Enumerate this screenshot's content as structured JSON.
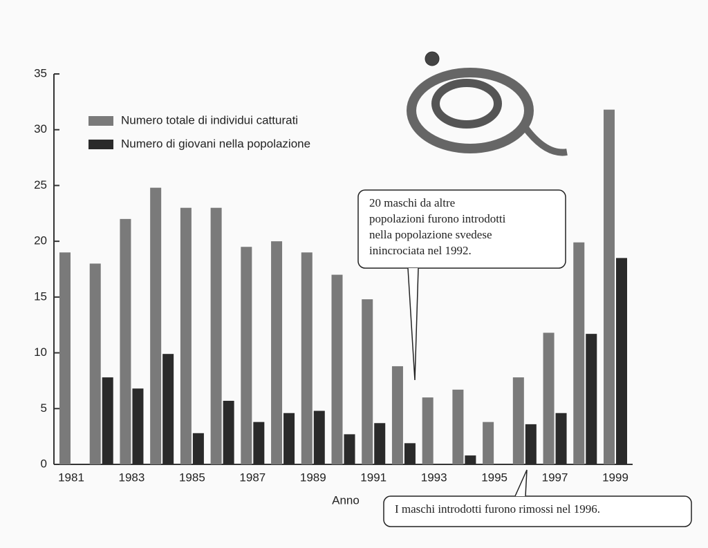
{
  "chart_data": {
    "type": "bar",
    "x_label": "Anno",
    "categories": [
      "1981",
      null,
      "1983",
      null,
      "1985",
      null,
      "1987",
      null,
      "1989",
      null,
      "1991",
      null,
      "1993",
      null,
      "1995",
      null,
      "1997",
      null,
      "1999"
    ],
    "series": [
      {
        "name": "Numero totale di individui catturati",
        "color": "#7a7a7a",
        "values": [
          19,
          18,
          22,
          24.8,
          23,
          23,
          19.5,
          20,
          19,
          17,
          14.8,
          8.8,
          6,
          6.7,
          3.8,
          7.8,
          11.8,
          19.9,
          31.8
        ]
      },
      {
        "name": "Numero di giovani nella popolazione",
        "color": "#2a2a2a",
        "values": [
          null,
          7.8,
          6.8,
          9.9,
          2.8,
          5.7,
          3.8,
          4.6,
          4.8,
          2.7,
          3.7,
          1.9,
          null,
          0.8,
          null,
          3.6,
          4.6,
          11.7,
          18.5
        ]
      }
    ],
    "ylim": [
      0,
      35
    ],
    "yticks": [
      0,
      5,
      10,
      15,
      20,
      25,
      30,
      35
    ],
    "annotations": [
      [
        "20 maschi da altre",
        "popolazioni furono introdotti",
        "nella popolazione svedese",
        "inincrociata nel 1992."
      ],
      [
        "I maschi introdotti furono rimossi nel 1996."
      ]
    ]
  }
}
